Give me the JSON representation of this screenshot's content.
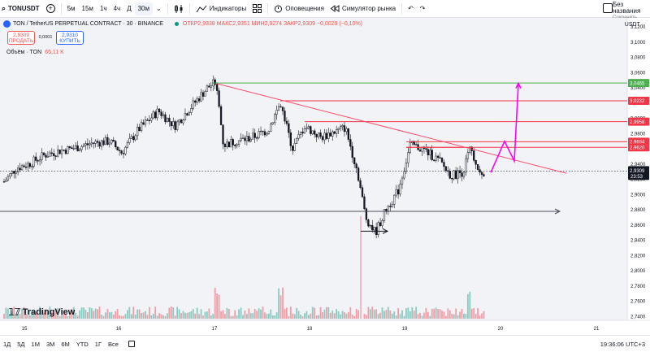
{
  "toolbar": {
    "symbol": "TONUSDT",
    "intervals": [
      "5м",
      "15м",
      "1ч",
      "4ч",
      "Д",
      "30м"
    ],
    "active_interval": "30м",
    "indicators_label": "Индикаторы",
    "alerts_label": "Оповещения",
    "replay_label": "Симулятор рынка",
    "layout_name": "Без названия",
    "layout_sub": "Сохранить"
  },
  "legend": {
    "title": "TON / TetherUS PERPETUAL CONTRACT · 30 · BINANCE",
    "open": "ОТКР2,9338",
    "high": "МАКС2,9351",
    "low": "МИН2,9274",
    "close": "ЗАКР2,9309",
    "change": "−0,0029 (−0,10%)"
  },
  "trade": {
    "sell_price": "2,9309",
    "sell_label": "ПРОДАТЬ",
    "spread": "0,0001",
    "buy_price": "2,9310",
    "buy_label": "КУПИТЬ"
  },
  "volume_legend": {
    "label": "Объём · TON",
    "value": "65,11 K"
  },
  "currency": "USDT ·",
  "watermark": "TradingView",
  "bottombar": {
    "ranges": [
      "1Д",
      "5Д",
      "1М",
      "3М",
      "6М",
      "YTD",
      "1Г",
      "Все"
    ],
    "clock": "19:36:06 UTC+3"
  },
  "colors": {
    "up": "#089981",
    "down": "#f23645",
    "candle": "#131722",
    "red_level": "#f23645",
    "green_level": "#4caf50",
    "magenta": "#ff00ff",
    "trendline": "#ff4d6d"
  },
  "chart_data": {
    "type": "candlestick",
    "symbol": "TON / TetherUS PERPETUAL CONTRACT",
    "timeframe": "30",
    "x_ticks": [
      "15",
      "16",
      "17",
      "18",
      "19",
      "20",
      "21"
    ],
    "y_ticks": [
      "3,1200",
      "3,1000",
      "3,0800",
      "3,0600",
      "3,0400",
      "3,0200",
      "3,0000",
      "2,9800",
      "2,9600",
      "2,9400",
      "2,9200",
      "2,9000",
      "2,8800",
      "2,8600",
      "2,8400",
      "2,8200",
      "2,8000",
      "2,7800",
      "2,7600",
      "2,7400"
    ],
    "ylim": [
      2.735,
      3.132
    ],
    "price_levels": [
      {
        "label": "3,0465",
        "value": 3.0465,
        "color": "green"
      },
      {
        "label": "3,0232",
        "value": 3.0232,
        "color": "red"
      },
      {
        "label": "2,9958",
        "value": 2.9958,
        "color": "red"
      },
      {
        "label": "2,9694",
        "value": 2.9694,
        "color": "red"
      },
      {
        "label": "2,9620",
        "value": 2.962,
        "color": "red"
      }
    ],
    "last_price": {
      "label": "2,9309",
      "timer": "23:53",
      "value": 2.9309
    },
    "gray_level": 2.878
  }
}
